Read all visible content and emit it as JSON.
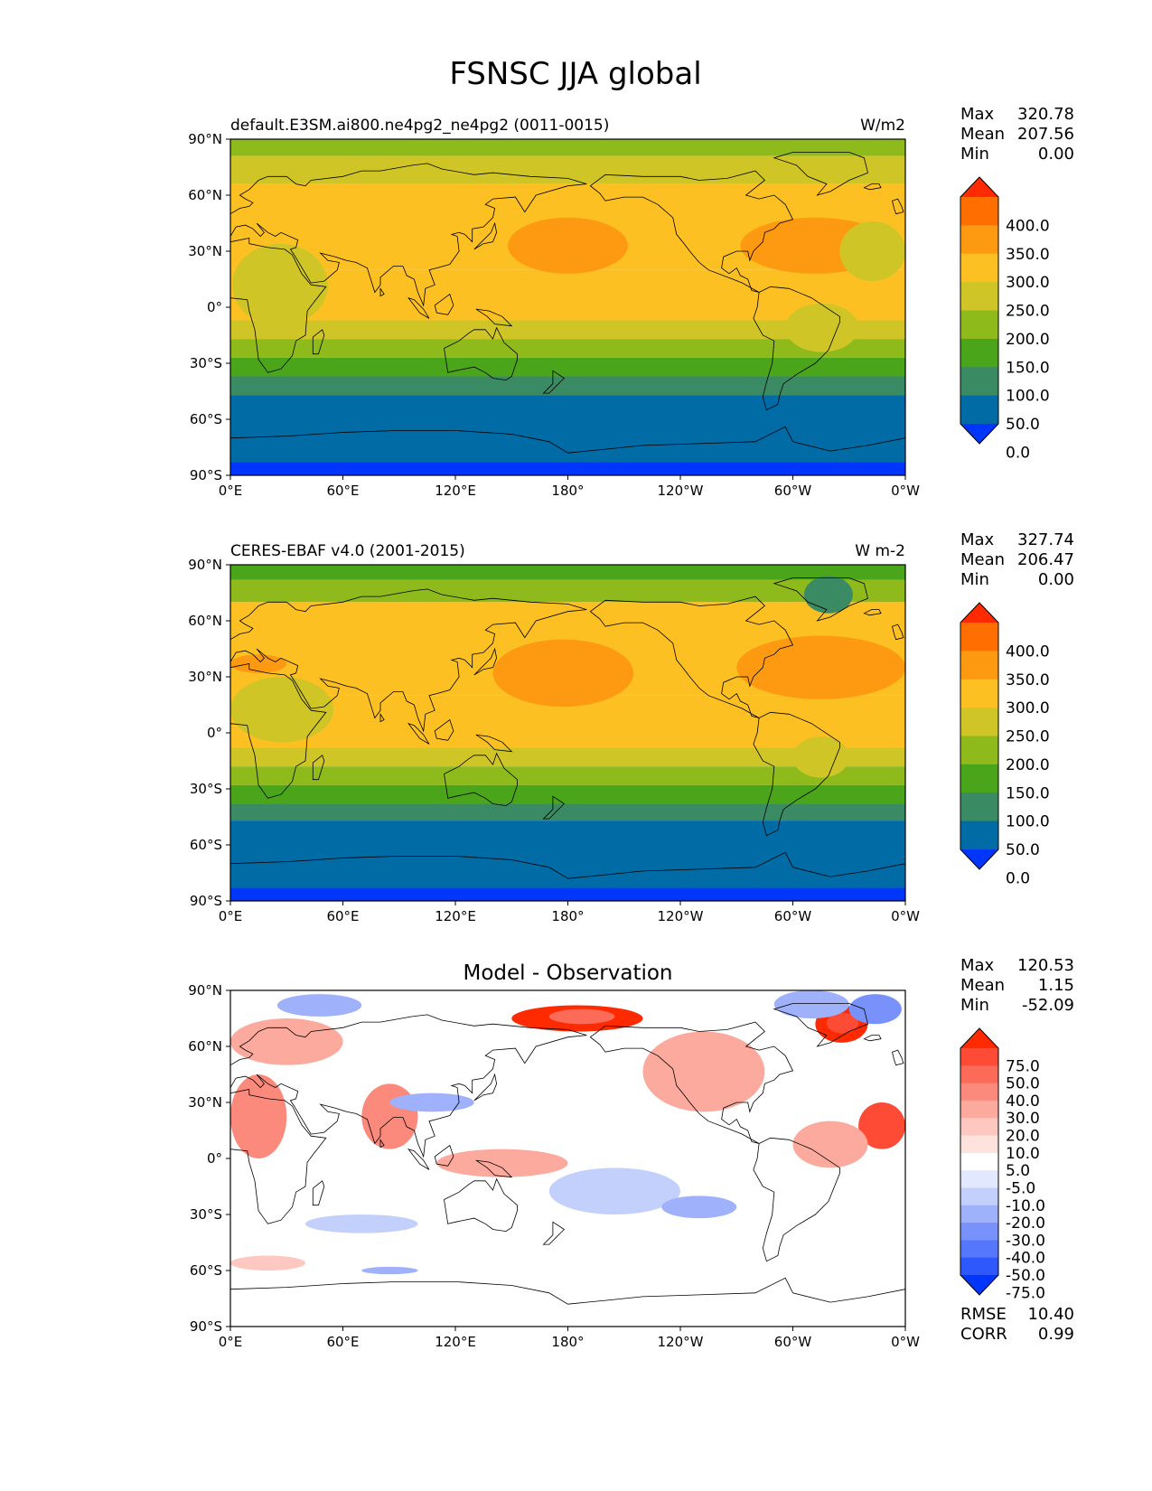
{
  "title": "FSNSC JJA global",
  "axes": {
    "lat_labels": [
      "90°N",
      "60°N",
      "30°N",
      "0°",
      "30°S",
      "60°S",
      "90°S"
    ],
    "lon_labels": [
      "0°E",
      "60°E",
      "120°E",
      "180°",
      "120°W",
      "60°W",
      "0°W"
    ]
  },
  "stat_labels": {
    "max": "Max",
    "mean": "Mean",
    "min": "Min",
    "rmse": "RMSE",
    "corr": "CORR"
  },
  "panels": [
    {
      "id": "model",
      "left_title": "default.E3SM.ai800.ne4pg2_ne4pg2 (0011-0015)",
      "center_title": "",
      "units": "W/m2",
      "stats": {
        "max": "320.78",
        "mean": "207.56",
        "min": "0.00"
      },
      "colorbar_labels": [
        "400.0",
        "350.0",
        "300.0",
        "250.0",
        "200.0",
        "150.0",
        "100.0",
        "50.0",
        "0.0"
      ]
    },
    {
      "id": "obs",
      "left_title": "CERES-EBAF v4.0 (2001-2015)",
      "center_title": "",
      "units": "W m-2",
      "stats": {
        "max": "327.74",
        "mean": "206.47",
        "min": "0.00"
      },
      "colorbar_labels": [
        "400.0",
        "350.0",
        "300.0",
        "250.0",
        "200.0",
        "150.0",
        "100.0",
        "50.0",
        "0.0"
      ]
    },
    {
      "id": "diff",
      "left_title": "",
      "center_title": "Model - Observation",
      "units": "",
      "stats": {
        "max": "120.53",
        "mean": "1.15",
        "min": "-52.09",
        "rmse": "10.40",
        "corr": "0.99"
      },
      "colorbar_labels": [
        "75.0",
        "50.0",
        "40.0",
        "30.0",
        "20.0",
        "10.0",
        "5.0",
        "-5.0",
        "-10.0",
        "-20.0",
        "-30.0",
        "-40.0",
        "-50.0",
        "-75.0"
      ]
    }
  ],
  "colors": {
    "abs_scale": [
      "#0035fb",
      "#006ba4",
      "#3a8a63",
      "#4aa51b",
      "#8fba1c",
      "#cfc526",
      "#fcc022",
      "#fd9a12",
      "#ff6e00",
      "#ff2a00"
    ],
    "diff_scale": [
      "#0035fb",
      "#2e58fb",
      "#5577fb",
      "#7992fb",
      "#9fb1fb",
      "#c4d0fc",
      "#e2e8fd",
      "#ffffff",
      "#fde2dd",
      "#fcc8c0",
      "#fca99e",
      "#fc8a7c",
      "#fc6a58",
      "#fd4b35",
      "#ff2a00"
    ]
  }
}
